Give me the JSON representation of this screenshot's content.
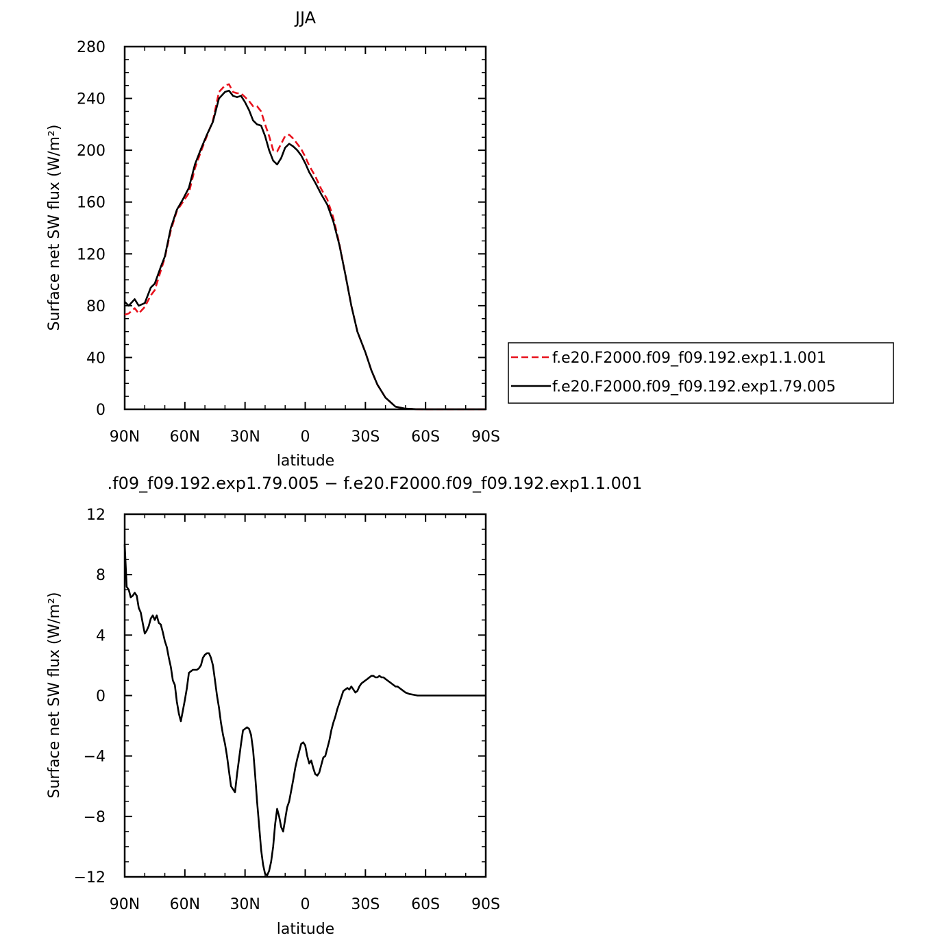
{
  "chart_data": [
    {
      "type": "line",
      "title": "JJA",
      "xlabel": "latitude",
      "ylabel": "Surface net SW flux (W/m²)",
      "xlim": [
        90,
        -90
      ],
      "ylim": [
        0,
        280
      ],
      "x_ticks": [
        90,
        60,
        30,
        0,
        -30,
        -60,
        -90
      ],
      "x_tick_labels": [
        "90N",
        "60N",
        "30N",
        "0",
        "30S",
        "60S",
        "90S"
      ],
      "y_ticks": [
        0,
        40,
        80,
        120,
        160,
        200,
        240,
        280
      ],
      "y_tick_labels": [
        "0",
        "40",
        "80",
        "120",
        "160",
        "200",
        "240",
        "280"
      ],
      "legend_position": "right",
      "series": [
        {
          "name": "f.e20.F2000.f09_f09.192.exp1.1.001",
          "color": "#e8111c",
          "dash": "dashed",
          "x": [
            90,
            88,
            85,
            83,
            80,
            77,
            75,
            72,
            70,
            67,
            64,
            61,
            58,
            55,
            52,
            49,
            46,
            43,
            40,
            38,
            36,
            34,
            32,
            30,
            28,
            26,
            24,
            22,
            20,
            18,
            16,
            14,
            12,
            10,
            8,
            6,
            4,
            2,
            0,
            -2,
            -5,
            -8,
            -11,
            -14,
            -17,
            -20,
            -23,
            -26,
            -30,
            -33,
            -36,
            -40,
            -45,
            -50,
            -55,
            -60,
            -63,
            -66,
            -70,
            -75,
            -80,
            -85,
            -90
          ],
          "values": [
            73,
            74,
            78,
            74,
            79,
            88,
            92,
            107,
            117,
            138,
            153,
            160,
            167,
            186,
            199,
            211,
            223,
            245,
            250,
            251,
            245,
            244,
            244,
            241,
            238,
            234,
            234,
            230,
            220,
            211,
            200,
            199,
            205,
            211,
            212,
            209,
            205,
            201,
            195,
            188,
            180,
            170,
            162,
            148,
            128,
            104,
            80,
            60,
            44,
            30,
            19,
            9,
            2,
            0.5,
            0.1,
            0,
            0,
            0,
            0,
            0,
            0,
            0,
            0
          ]
        },
        {
          "name": "f.e20.F2000.f09_f09.192.exp1.79.005",
          "color": "#000000",
          "dash": "solid",
          "x": [
            90,
            88,
            85,
            83,
            80,
            77,
            75,
            72,
            70,
            67,
            64,
            61,
            58,
            55,
            52,
            49,
            46,
            43,
            40,
            38,
            36,
            34,
            32,
            30,
            28,
            26,
            24,
            22,
            20,
            18,
            16,
            14,
            12,
            10,
            8,
            6,
            4,
            2,
            0,
            -2,
            -5,
            -8,
            -11,
            -14,
            -17,
            -20,
            -23,
            -26,
            -30,
            -33,
            -36,
            -40,
            -45,
            -50,
            -55,
            -60,
            -63,
            -66,
            -70,
            -75,
            -80,
            -85,
            -90
          ],
          "values": [
            83,
            80,
            85,
            80,
            82,
            94,
            97,
            110,
            118,
            140,
            154,
            162,
            171,
            189,
            201,
            212,
            222,
            240,
            245,
            246,
            242,
            241,
            242,
            237,
            231,
            223,
            220,
            219,
            211,
            200,
            192,
            189,
            194,
            202,
            205,
            203,
            200,
            196,
            190,
            183,
            175,
            166,
            158,
            145,
            127,
            104,
            80,
            60,
            44,
            30,
            19,
            9,
            2,
            0.5,
            0.1,
            0,
            0,
            0,
            0,
            0,
            0,
            0,
            0
          ]
        }
      ]
    },
    {
      "type": "line",
      "title": ".f09_f09.192.exp1.79.005 − f.e20.F2000.f09_f09.192.exp1.1.001",
      "xlabel": "latitude",
      "ylabel": "Surface net SW flux (W/m²)",
      "xlim": [
        90,
        -90
      ],
      "ylim": [
        -12,
        12
      ],
      "x_ticks": [
        90,
        60,
        30,
        0,
        -30,
        -60,
        -90
      ],
      "x_tick_labels": [
        "90N",
        "60N",
        "30N",
        "0",
        "30S",
        "60S",
        "90S"
      ],
      "y_ticks": [
        -12,
        -8,
        -4,
        0,
        4,
        8,
        12
      ],
      "y_tick_labels": [
        "−12",
        "−8",
        "−4",
        "0",
        "4",
        "8",
        "12"
      ],
      "series": [
        {
          "color": "#000000",
          "dash": "solid",
          "x": [
            90,
            89,
            88,
            87,
            86,
            85,
            84,
            83,
            82,
            81,
            80,
            79,
            78,
            77,
            76,
            75,
            74,
            73,
            72,
            71,
            70,
            69,
            68,
            67,
            66,
            65,
            64,
            63,
            62,
            61,
            60,
            59,
            58,
            57,
            56,
            55,
            54,
            53,
            52,
            51,
            50,
            49,
            48,
            47,
            46,
            45,
            44,
            43,
            42,
            41,
            40,
            39,
            38,
            37,
            36,
            35,
            34,
            33,
            32,
            31,
            30,
            29,
            28,
            27,
            26,
            25,
            24,
            23,
            22,
            21,
            20,
            19,
            18,
            17,
            16,
            15,
            14,
            13,
            12,
            11,
            10,
            9,
            8,
            7,
            6,
            5,
            4,
            3,
            2,
            1,
            0,
            -1,
            -2,
            -3,
            -4,
            -5,
            -6,
            -7,
            -8,
            -9,
            -10,
            -11,
            -12,
            -13,
            -14,
            -15,
            -16,
            -17,
            -18,
            -19,
            -20,
            -21,
            -22,
            -23,
            -24,
            -25,
            -26,
            -27,
            -28,
            -29,
            -30,
            -31,
            -32,
            -33,
            -34,
            -35,
            -36,
            -37,
            -38,
            -39,
            -40,
            -41,
            -42,
            -43,
            -44,
            -45,
            -46,
            -47,
            -48,
            -49,
            -50,
            -52,
            -54,
            -56,
            -58,
            -60,
            -62,
            -64,
            -66,
            -68,
            -70,
            -75,
            -80,
            -85,
            -90
          ],
          "values": [
            10.0,
            7.2,
            7.0,
            6.5,
            6.6,
            6.8,
            6.6,
            5.8,
            5.5,
            4.8,
            4.1,
            4.3,
            4.6,
            5.1,
            5.3,
            5.0,
            5.3,
            4.8,
            4.7,
            4.2,
            3.6,
            3.2,
            2.5,
            1.9,
            1.0,
            0.7,
            -0.4,
            -1.2,
            -1.7,
            -1.0,
            -0.3,
            0.5,
            1.5,
            1.6,
            1.7,
            1.7,
            1.7,
            1.8,
            2.0,
            2.5,
            2.7,
            2.8,
            2.8,
            2.5,
            2.0,
            1.0,
            0.0,
            -0.8,
            -1.8,
            -2.6,
            -3.2,
            -4.0,
            -5.0,
            -6.0,
            -6.2,
            -6.4,
            -5.2,
            -4.2,
            -3.2,
            -2.3,
            -2.2,
            -2.1,
            -2.2,
            -2.6,
            -3.6,
            -5.2,
            -7.0,
            -8.6,
            -10.2,
            -11.2,
            -11.8,
            -11.9,
            -11.6,
            -11.0,
            -10.0,
            -8.5,
            -7.5,
            -8.0,
            -8.7,
            -9.0,
            -8.2,
            -7.4,
            -7.0,
            -6.3,
            -5.6,
            -4.8,
            -4.2,
            -3.7,
            -3.2,
            -3.1,
            -3.3,
            -4.0,
            -4.5,
            -4.3,
            -4.8,
            -5.2,
            -5.3,
            -5.1,
            -4.6,
            -4.1,
            -4.0,
            -3.5,
            -3.0,
            -2.3,
            -1.8,
            -1.4,
            -0.9,
            -0.5,
            -0.1,
            0.3,
            0.4,
            0.5,
            0.4,
            0.6,
            0.4,
            0.2,
            0.3,
            0.6,
            0.8,
            0.9,
            1.0,
            1.1,
            1.2,
            1.3,
            1.3,
            1.2,
            1.2,
            1.3,
            1.2,
            1.2,
            1.1,
            1.0,
            0.9,
            0.8,
            0.7,
            0.6,
            0.6,
            0.5,
            0.4,
            0.3,
            0.2,
            0.1,
            0.05,
            0.0,
            0.0,
            0.0,
            0.0,
            0.0,
            0.0,
            0.0,
            0.0,
            0.0,
            0.0,
            0.0,
            0.0
          ]
        }
      ]
    }
  ]
}
